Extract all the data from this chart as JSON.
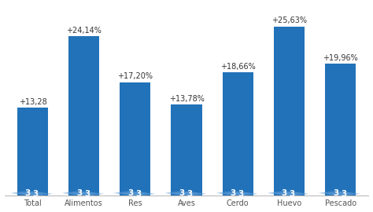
{
  "categories": [
    "Total",
    "Alimentos",
    "Res",
    "Aves",
    "Cerdo",
    "Huevo",
    "Pescado"
  ],
  "values": [
    13.28,
    24.14,
    17.2,
    13.78,
    18.66,
    25.63,
    19.96
  ],
  "labels": [
    "+13,28",
    "+24,14%",
    "+17,20%",
    "+13,78%",
    "+18,66%",
    "+25,63%",
    "+19,96%"
  ],
  "bar_color": "#2272b9",
  "watermark_color": "#5b9bd5",
  "background_color": "#ffffff",
  "ylim": [
    0,
    29
  ],
  "bar_width": 0.6,
  "label_fontsize": 7.0,
  "tick_fontsize": 7.0
}
